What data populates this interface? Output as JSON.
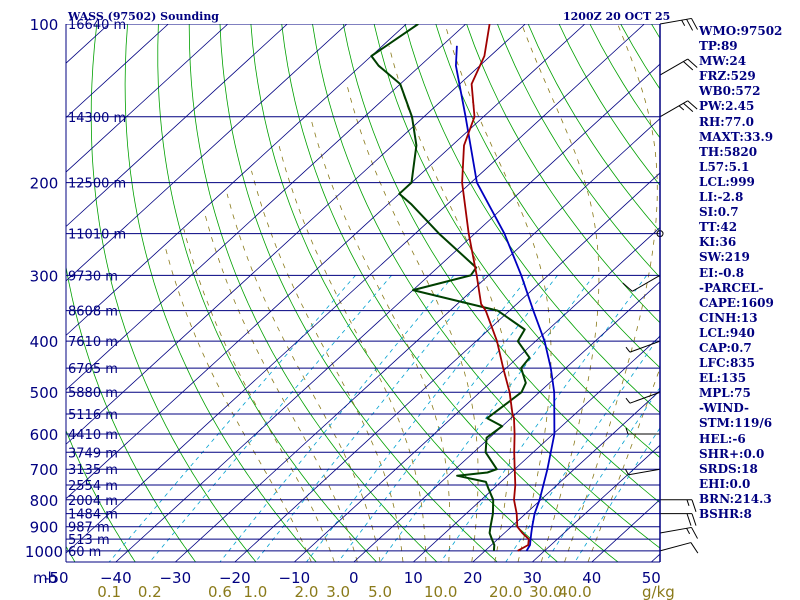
{
  "chart_data": {
    "type": "skew-t log-p sounding",
    "title": "WASS (97502) Sounding",
    "valid_time": "1200Z 20 OCT 25",
    "pressure_levels": [
      100,
      200,
      300,
      400,
      500,
      600,
      700,
      800,
      900,
      1000
    ],
    "height_labels": [
      {
        "p": 100,
        "label": "16640 m"
      },
      {
        "p": 150,
        "label": "14300 m"
      },
      {
        "p": 200,
        "label": "12500 m"
      },
      {
        "p": 250,
        "label": "11010 m"
      },
      {
        "p": 300,
        "label": "9730 m"
      },
      {
        "p": 350,
        "label": "8608 m"
      },
      {
        "p": 400,
        "label": "7610 m"
      },
      {
        "p": 450,
        "label": "6705 m"
      },
      {
        "p": 500,
        "label": "5880 m"
      },
      {
        "p": 550,
        "label": "5116 m"
      },
      {
        "p": 600,
        "label": "4410 m"
      },
      {
        "p": 650,
        "label": "3749 m"
      },
      {
        "p": 700,
        "label": "3135 m"
      },
      {
        "p": 750,
        "label": "2554 m"
      },
      {
        "p": 800,
        "label": "2004 m"
      },
      {
        "p": 850,
        "label": "1484 m"
      },
      {
        "p": 900,
        "label": "987 m"
      },
      {
        "p": 950,
        "label": "513 m"
      },
      {
        "p": 1000,
        "label": "60 m"
      }
    ],
    "temperature_axis": {
      "label": "mb",
      "ticks": [
        -50,
        -40,
        -30,
        -20,
        -10,
        0,
        10,
        20,
        30,
        40,
        50
      ],
      "tick_labels": [
        "-50",
        "−40",
        "−30",
        "−20",
        "−10",
        "0",
        "10",
        "20",
        "30",
        "40",
        "50"
      ],
      "range": [
        -50,
        50
      ]
    },
    "mixing_ratio_axis": {
      "unit": "g/kg",
      "ticks": [
        0.1,
        0.2,
        0.6,
        1.0,
        2.0,
        3.0,
        5.0,
        10.0,
        20.0,
        30.0,
        40.0
      ],
      "tick_labels": [
        "0.1",
        "0.2",
        "0.6",
        "1.0",
        "2.0",
        "3.0",
        "5.0",
        "10.0",
        "20.0",
        "30.0",
        "40.0"
      ]
    },
    "temperature_profile": [
      [
        1000,
        25.5
      ],
      [
        975,
        26.2
      ],
      [
        950,
        25.2
      ],
      [
        925,
        23.0
      ],
      [
        900,
        21.0
      ],
      [
        850,
        18.5
      ],
      [
        800,
        15.5
      ],
      [
        750,
        13.0
      ],
      [
        700,
        10.0
      ],
      [
        650,
        6.8
      ],
      [
        600,
        3.5
      ],
      [
        560,
        0.5
      ],
      [
        550,
        -0.5
      ],
      [
        500,
        -5.0
      ],
      [
        450,
        -10.5
      ],
      [
        400,
        -16.5
      ],
      [
        350,
        -24.0
      ],
      [
        340,
        -26.0
      ],
      [
        300,
        -32.0
      ],
      [
        250,
        -41.0
      ],
      [
        200,
        -51.5
      ],
      [
        170,
        -58.0
      ],
      [
        150,
        -61.5
      ],
      [
        130,
        -68.0
      ],
      [
        115,
        -71.0
      ],
      [
        100,
        -76.0
      ]
    ],
    "dewpoint_profile": [
      [
        1000,
        21.5
      ],
      [
        975,
        20.5
      ],
      [
        950,
        19.0
      ],
      [
        925,
        17.5
      ],
      [
        900,
        16.5
      ],
      [
        850,
        14.5
      ],
      [
        800,
        12.0
      ],
      [
        760,
        9.0
      ],
      [
        740,
        7.5
      ],
      [
        720,
        1.5
      ],
      [
        710,
        6.0
      ],
      [
        700,
        7.0
      ],
      [
        650,
        2.0
      ],
      [
        610,
        -0.5
      ],
      [
        580,
        0.0
      ],
      [
        560,
        -4.0
      ],
      [
        530,
        -3.5
      ],
      [
        500,
        -3.0
      ],
      [
        480,
        -4.0
      ],
      [
        450,
        -7.5
      ],
      [
        430,
        -8.0
      ],
      [
        400,
        -13.0
      ],
      [
        380,
        -14.0
      ],
      [
        350,
        -22.0
      ],
      [
        320,
        -40.0
      ],
      [
        300,
        -33.0
      ],
      [
        290,
        -33.5
      ],
      [
        250,
        -46.0
      ],
      [
        220,
        -56.0
      ],
      [
        210,
        -60.0
      ],
      [
        200,
        -60.0
      ],
      [
        170,
        -66.0
      ],
      [
        150,
        -72.0
      ],
      [
        130,
        -80.0
      ],
      [
        120,
        -87.0
      ],
      [
        115,
        -90.0
      ],
      [
        100,
        -88.0
      ]
    ],
    "parcel_profile": [
      [
        1000,
        27.0
      ],
      [
        975,
        26.5
      ],
      [
        950,
        25.5
      ],
      [
        925,
        24.5
      ],
      [
        900,
        23.5
      ],
      [
        850,
        21.5
      ],
      [
        800,
        19.8
      ],
      [
        700,
        15.5
      ],
      [
        600,
        10.2
      ],
      [
        500,
        2.5
      ],
      [
        450,
        -2.5
      ],
      [
        400,
        -8.5
      ],
      [
        350,
        -16.0
      ],
      [
        300,
        -24.5
      ],
      [
        250,
        -35.0
      ],
      [
        200,
        -49.0
      ],
      [
        150,
        -63.0
      ],
      [
        120,
        -74.0
      ],
      [
        110,
        -77.5
      ]
    ],
    "wind_barbs": [
      {
        "p": 1000,
        "dir": 75,
        "kt": 10
      },
      {
        "p": 925,
        "dir": 80,
        "kt": 15
      },
      {
        "p": 850,
        "dir": 90,
        "kt": 20
      },
      {
        "p": 800,
        "dir": 90,
        "kt": 15
      },
      {
        "p": 700,
        "dir": 260,
        "kt": 5
      },
      {
        "p": 600,
        "dir": 270,
        "kt": 5
      },
      {
        "p": 500,
        "dir": 250,
        "kt": 5
      },
      {
        "p": 400,
        "dir": 250,
        "kt": 5
      },
      {
        "p": 300,
        "dir": 240,
        "kt": 10
      },
      {
        "p": 250,
        "dir": 0,
        "kt": 0
      },
      {
        "p": 150,
        "dir": 60,
        "kt": 25
      },
      {
        "p": 125,
        "dir": 60,
        "kt": 20
      },
      {
        "p": 100,
        "dir": 80,
        "kt": 25
      }
    ]
  },
  "indices": [
    "WMO:97502",
    "TP:89",
    "MW:24",
    "FRZ:529",
    "WB0:572",
    "PW:2.45",
    "RH:77.0",
    "MAXT:33.9",
    "TH:5820",
    "L57:5.1",
    "LCL:999",
    "LI:-2.8",
    "SI:0.7",
    "TT:42",
    "KI:36",
    "SW:219",
    "EI:-0.8",
    "-PARCEL-",
    "CAPE:1609",
    "CINH:13",
    "LCL:940",
    "CAP:0.7",
    "LFC:835",
    "EL:135",
    "MPL:75",
    "-WIND-",
    "STM:119/6",
    "HEL:-6",
    "SHR+:0.0",
    "SRDS:18",
    "EHI:0.0",
    "BRN:214.3",
    "BSHR:8"
  ],
  "colors": {
    "frame": "#000080",
    "isobar": "#000080",
    "isotherm": "#000080",
    "dry_adiabat": "#00a000",
    "moist_adiabat": "#8a7a1a",
    "mixing_ratio": "#00a0d0",
    "temperature": "#a00000",
    "dewpoint": "#004000",
    "parcel": "#0000c0",
    "wind_barb": "#000000"
  }
}
